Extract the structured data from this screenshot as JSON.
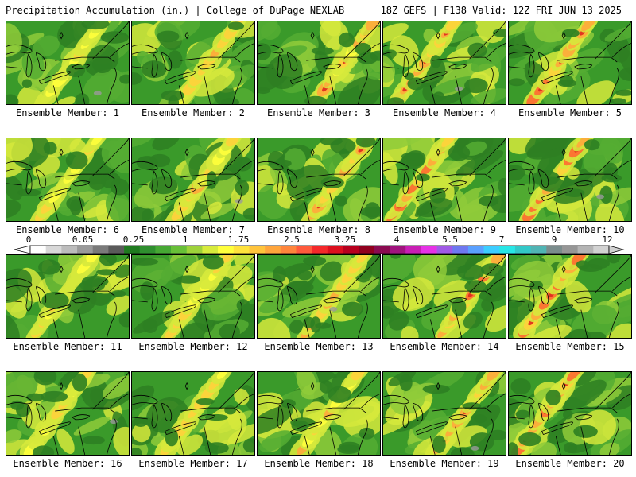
{
  "header": {
    "title_left": "Precipitation Accumulation (in.) | College of DuPage NEXLAB",
    "title_right": "18Z GEFS | F138 Valid: 12Z FRI JUN 13 2025"
  },
  "panels": [
    {
      "label": "Ensemble Member: 1",
      "member": 1
    },
    {
      "label": "Ensemble Member: 2",
      "member": 2
    },
    {
      "label": "Ensemble Member: 3",
      "member": 3
    },
    {
      "label": "Ensemble Member: 4",
      "member": 4
    },
    {
      "label": "Ensemble Member: 5",
      "member": 5
    },
    {
      "label": "Ensemble Member: 6",
      "member": 6
    },
    {
      "label": "Ensemble Member: 7",
      "member": 7
    },
    {
      "label": "Ensemble Member: 8",
      "member": 8
    },
    {
      "label": "Ensemble Member: 9",
      "member": 9
    },
    {
      "label": "Ensemble Member: 10",
      "member": 10
    },
    {
      "label": "Ensemble Member: 11",
      "member": 11
    },
    {
      "label": "Ensemble Member: 12",
      "member": 12
    },
    {
      "label": "Ensemble Member: 13",
      "member": 13
    },
    {
      "label": "Ensemble Member: 14",
      "member": 14
    },
    {
      "label": "Ensemble Member: 15",
      "member": 15
    },
    {
      "label": "Ensemble Member: 16",
      "member": 16
    },
    {
      "label": "Ensemble Member: 17",
      "member": 17
    },
    {
      "label": "Ensemble Member: 18",
      "member": 18
    },
    {
      "label": "Ensemble Member: 19",
      "member": 19
    },
    {
      "label": "Ensemble Member: 20",
      "member": 20
    }
  ],
  "colorbar": {
    "tick_labels": [
      "0",
      "0.05",
      "0.25",
      "1",
      "1.75",
      "2.5",
      "3.25",
      "4",
      "5.5",
      "7",
      "9",
      "12"
    ],
    "colors": [
      "#ffffff",
      "#d8d8d8",
      "#bcbcbc",
      "#9a9a9a",
      "#7a7a7a",
      "#5a5a5a",
      "#1f7a1f",
      "#2f8f2f",
      "#46a834",
      "#68bf38",
      "#9ed23a",
      "#d7eb3c",
      "#ffff3c",
      "#ffe23c",
      "#ffc43c",
      "#ffa53c",
      "#ff853c",
      "#ff5a3c",
      "#f4282a",
      "#dc0f1e",
      "#b8001e",
      "#90001e",
      "#8a0a50",
      "#a0137e",
      "#c81eb4",
      "#e632e6",
      "#a05ae6",
      "#6e78f0",
      "#5aa0ff",
      "#3ccdff",
      "#28e6e6",
      "#32c8c8",
      "#50b4b4",
      "#7a8c8c",
      "#969696",
      "#b4b4b4",
      "#d2d2d2"
    ]
  },
  "map": {
    "base_color": "#3a9a2a",
    "shade_colors": [
      "#2e7f22",
      "#55ad33",
      "#8fcb3a",
      "#d6e93c",
      "#ffff3c",
      "#ffd23c",
      "#ffa83c",
      "#ff6a32",
      "#e0281e",
      "#9a9a9a"
    ]
  }
}
